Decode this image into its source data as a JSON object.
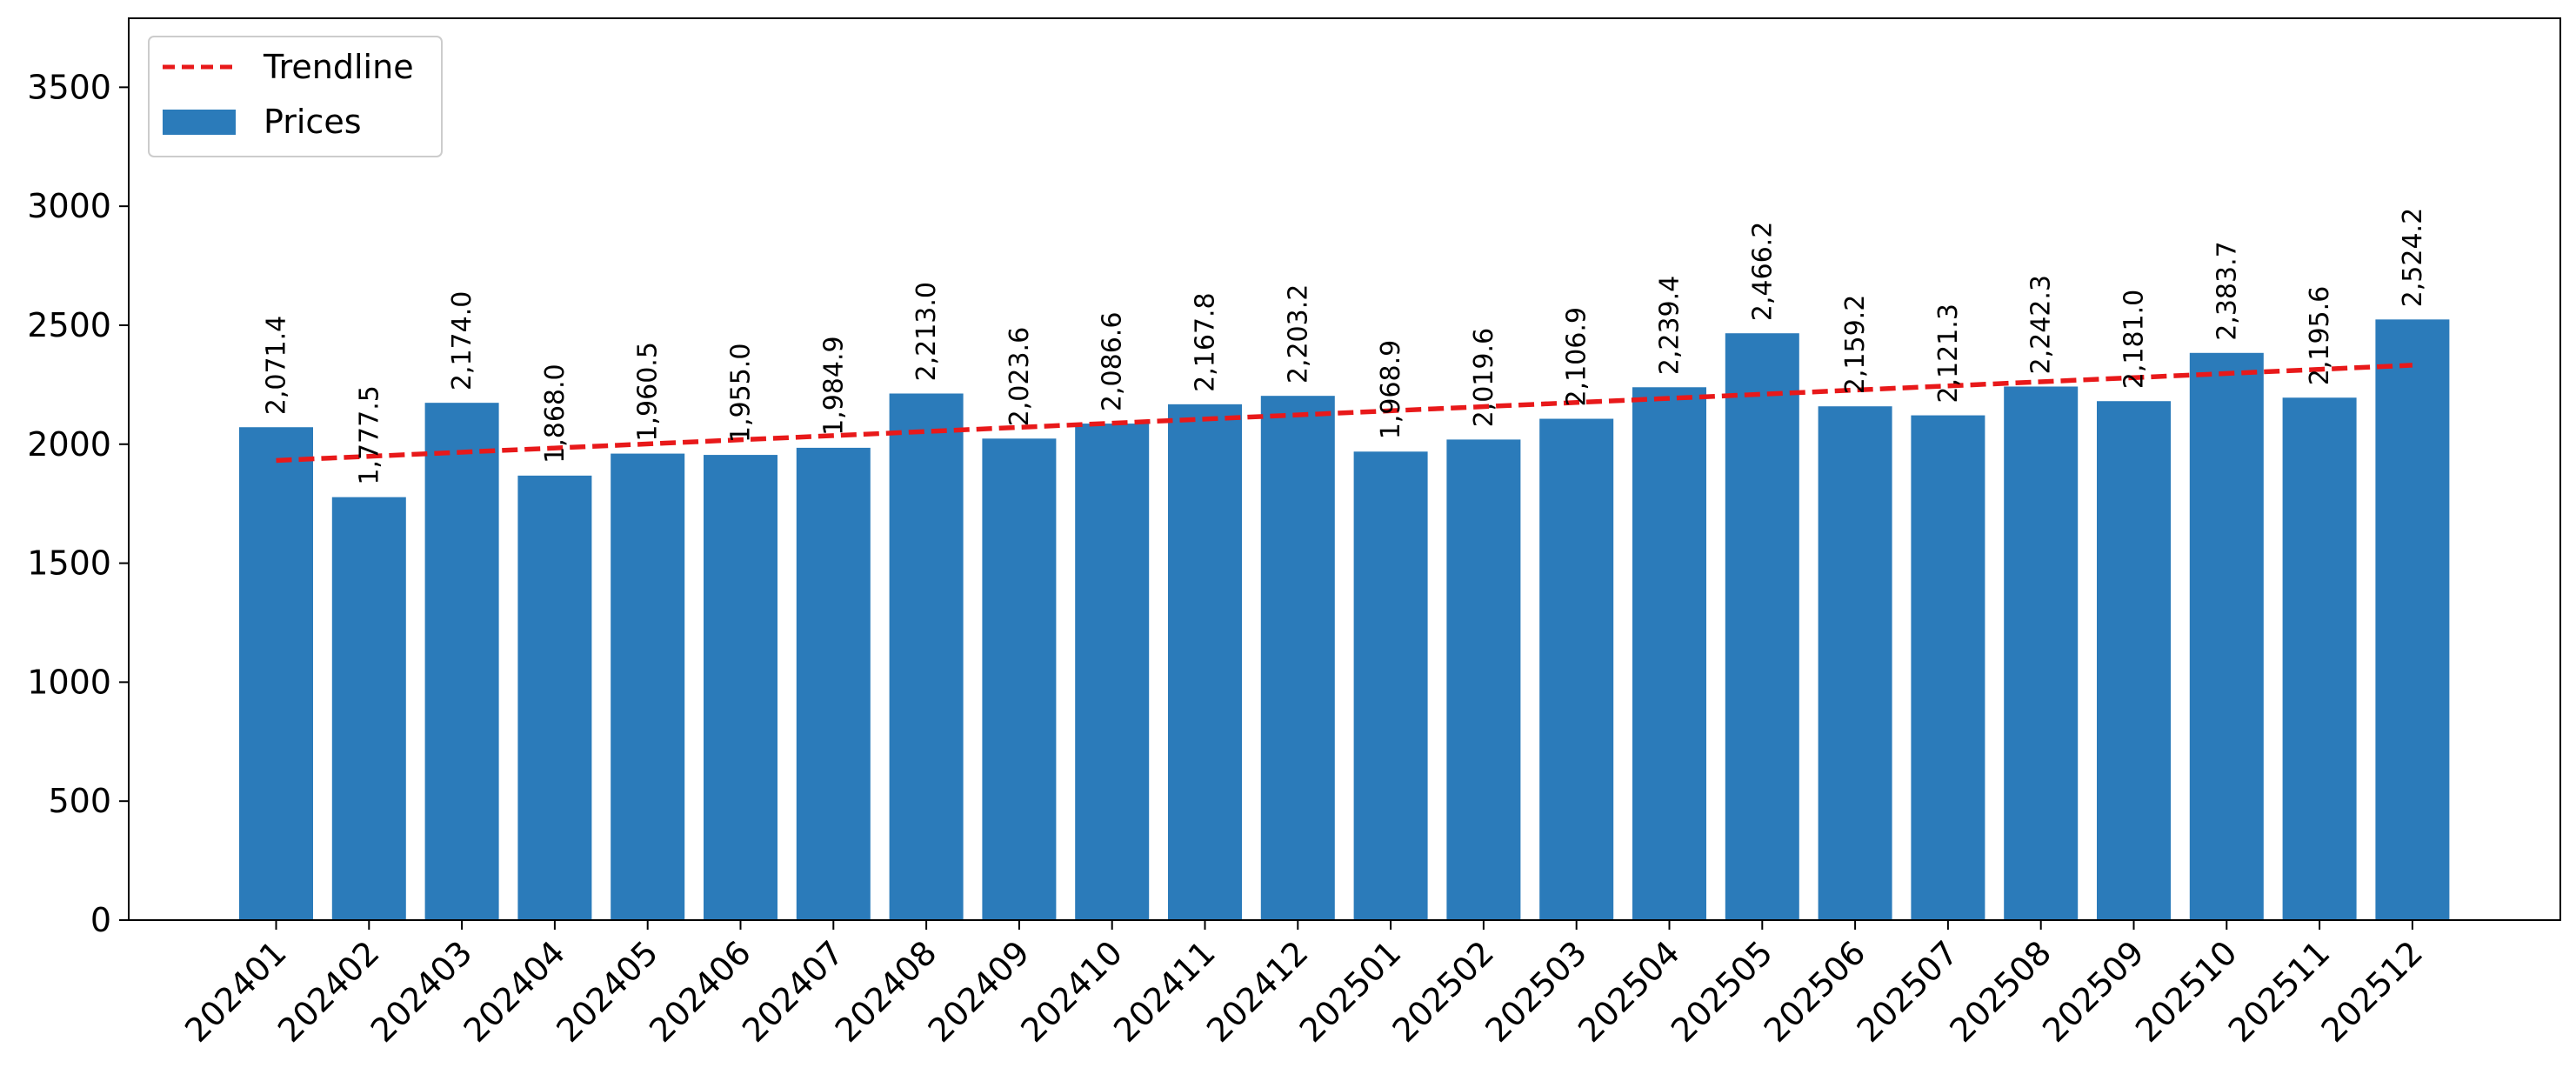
{
  "chart_data": {
    "type": "bar",
    "categories": [
      "202401",
      "202402",
      "202403",
      "202404",
      "202405",
      "202406",
      "202407",
      "202408",
      "202409",
      "202410",
      "202411",
      "202412",
      "202501",
      "202502",
      "202503",
      "202504",
      "202505",
      "202506",
      "202507",
      "202508",
      "202509",
      "202510",
      "202511",
      "202512"
    ],
    "series": [
      {
        "name": "Prices",
        "values": [
          2071.4,
          1777.5,
          2174.0,
          1868.0,
          1960.5,
          1955.0,
          1984.9,
          2213.0,
          2023.6,
          2086.6,
          2167.8,
          2203.2,
          1968.9,
          2019.6,
          2106.9,
          2239.4,
          2466.2,
          2159.2,
          2121.3,
          2242.3,
          2181.0,
          2383.7,
          2195.6,
          2524.2
        ],
        "color": "#2b7bba"
      }
    ],
    "data_labels": [
      "2,071.4",
      "1,777.5",
      "2,174.0",
      "1,868.0",
      "1,960.5",
      "1,955.0",
      "1,984.9",
      "2,213.0",
      "2,023.6",
      "2,086.6",
      "2,167.8",
      "2,203.2",
      "1,968.9",
      "2,019.6",
      "2,106.9",
      "2,239.4",
      "2,466.2",
      "2,159.2",
      "2,121.3",
      "2,242.3",
      "2,181.0",
      "2,383.7",
      "2,195.6",
      "2,524.2"
    ],
    "trendline": {
      "name": "Trendline",
      "color": "#e8191a",
      "style": "dashed",
      "start": 1931.6,
      "end": 2332.0
    },
    "title": "",
    "xlabel": "",
    "ylabel": "",
    "ylim": [
      0,
      3790
    ],
    "yticks": [
      0,
      500,
      1000,
      1500,
      2000,
      2500,
      3000,
      3500
    ],
    "grid": false,
    "legend_position": "top-left",
    "legend": [
      {
        "label": "Trendline",
        "kind": "dashed-line",
        "color": "#e8191a"
      },
      {
        "label": "Prices",
        "kind": "patch",
        "color": "#2b7bba"
      }
    ]
  }
}
